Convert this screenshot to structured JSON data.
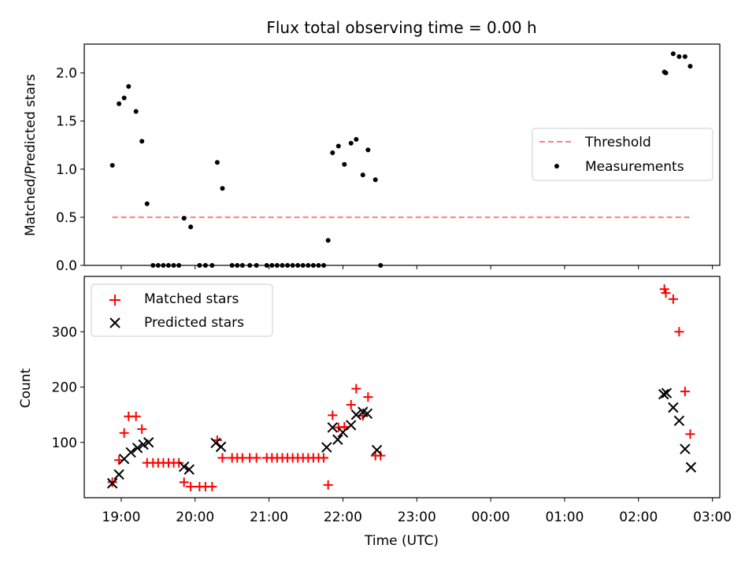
{
  "figure": {
    "title": "Flux total observing time = 0.00 h"
  },
  "chart_data": [
    {
      "type": "scatter",
      "panel": "top",
      "ylabel": "Matched/Predicted stars",
      "ylim": [
        0,
        2.3
      ],
      "yticks": [
        "0.0",
        "0.5",
        "1.0",
        "1.5",
        "2.0"
      ],
      "xlim": [
        18.5,
        27.1
      ],
      "xticks": [
        19,
        20,
        21,
        22,
        23,
        24,
        25,
        26,
        27
      ],
      "xticklabels": [
        "19:00",
        "20:00",
        "21:00",
        "22:00",
        "23:00",
        "00:00",
        "01:00",
        "02:00",
        "03:00"
      ],
      "legend": {
        "placement": "center-right",
        "entries": [
          "Threshold",
          "Measurements"
        ]
      },
      "series": [
        {
          "name": "Threshold",
          "style": "dashed-line",
          "color": "#ff7f7f",
          "x": [
            18.88,
            26.71
          ],
          "y": [
            0.5,
            0.5
          ]
        },
        {
          "name": "Measurements",
          "style": "dot",
          "color": "#000000",
          "x": [
            18.88,
            18.97,
            19.04,
            19.1,
            19.2,
            19.28,
            19.35,
            19.43,
            19.5,
            19.57,
            19.64,
            19.71,
            19.78,
            19.85,
            19.94,
            20.06,
            20.14,
            20.23,
            20.3,
            20.37,
            20.5,
            20.57,
            20.64,
            20.74,
            20.83,
            20.97,
            21.04,
            21.11,
            21.18,
            21.25,
            21.32,
            21.39,
            21.46,
            21.53,
            21.6,
            21.67,
            21.74,
            21.8,
            21.86,
            21.94,
            22.02,
            22.11,
            22.18,
            22.27,
            22.34,
            22.44,
            22.51,
            26.35,
            26.37,
            26.47,
            26.55,
            26.63,
            26.7
          ],
          "y": [
            1.04,
            1.68,
            1.74,
            1.86,
            1.6,
            1.29,
            0.64,
            0.0,
            0.0,
            0.0,
            0.0,
            0.0,
            0.0,
            0.49,
            0.4,
            0.0,
            0.0,
            0.0,
            1.07,
            0.8,
            0.0,
            0.0,
            0.0,
            0.0,
            0.0,
            0.0,
            0.0,
            0.0,
            0.0,
            0.0,
            0.0,
            0.0,
            0.0,
            0.0,
            0.0,
            0.0,
            0.0,
            0.26,
            1.17,
            1.24,
            1.05,
            1.27,
            1.31,
            0.94,
            1.2,
            0.89,
            0.0,
            2.01,
            2.0,
            2.2,
            2.17,
            2.17,
            2.07
          ]
        }
      ]
    },
    {
      "type": "scatter",
      "panel": "bottom",
      "xlabel": "Time (UTC)",
      "ylabel": "Count",
      "ylim": [
        0,
        400
      ],
      "yticks": [
        "100",
        "200",
        "300"
      ],
      "xlim": [
        18.5,
        27.1
      ],
      "xticks": [
        19,
        20,
        21,
        22,
        23,
        24,
        25,
        26,
        27
      ],
      "xticklabels": [
        "19:00",
        "20:00",
        "21:00",
        "22:00",
        "23:00",
        "00:00",
        "01:00",
        "02:00",
        "03:00"
      ],
      "legend": {
        "placement": "top-left",
        "entries": [
          "Matched stars",
          "Predicted stars"
        ]
      },
      "series": [
        {
          "name": "Matched stars",
          "marker": "+",
          "color": "#ff0000",
          "x": [
            18.88,
            18.97,
            19.04,
            19.1,
            19.2,
            19.28,
            19.35,
            19.43,
            19.5,
            19.57,
            19.64,
            19.71,
            19.78,
            19.85,
            19.94,
            20.06,
            20.14,
            20.23,
            20.3,
            20.37,
            20.5,
            20.57,
            20.64,
            20.74,
            20.83,
            20.97,
            21.04,
            21.11,
            21.18,
            21.25,
            21.32,
            21.39,
            21.46,
            21.53,
            21.6,
            21.67,
            21.74,
            21.8,
            21.86,
            21.94,
            22.02,
            22.11,
            22.18,
            22.27,
            22.34,
            22.44,
            22.51,
            26.35,
            26.37,
            26.47,
            26.55,
            26.63,
            26.7
          ],
          "y": [
            28,
            68,
            117,
            147,
            147,
            124,
            63,
            63,
            63,
            63,
            63,
            63,
            63,
            28,
            20,
            20,
            20,
            20,
            104,
            72,
            72,
            72,
            72,
            72,
            72,
            72,
            72,
            72,
            72,
            72,
            72,
            72,
            72,
            72,
            72,
            72,
            72,
            23,
            149,
            127,
            128,
            168,
            197,
            148,
            182,
            76,
            76,
            377,
            370,
            359,
            300,
            192,
            115
          ]
        },
        {
          "name": "Predicted stars",
          "marker": "x",
          "color": "#000000",
          "x": [
            18.88,
            18.97,
            19.04,
            19.13,
            19.22,
            19.3,
            19.37,
            19.85,
            19.92,
            20.28,
            20.35,
            21.78,
            21.86,
            21.93,
            22.0,
            22.11,
            22.18,
            22.27,
            22.33,
            22.46,
            26.34,
            26.38,
            26.47,
            26.55,
            26.63,
            26.71
          ],
          "y": [
            26,
            42,
            70,
            82,
            90,
            96,
            100,
            56,
            51,
            99,
            92,
            91,
            127,
            105,
            118,
            131,
            150,
            155,
            152,
            86,
            187,
            189,
            163,
            139,
            88,
            55
          ]
        }
      ]
    }
  ]
}
